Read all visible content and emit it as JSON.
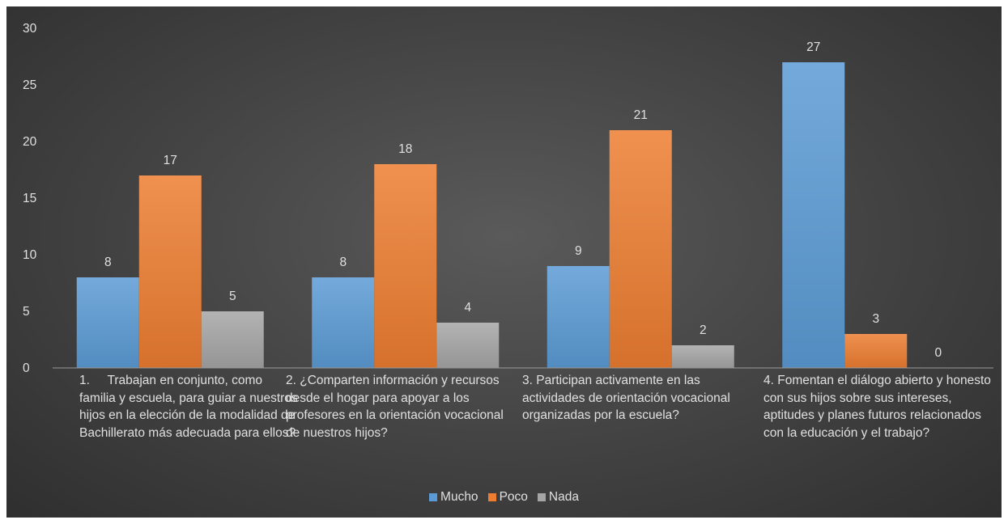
{
  "chart_data": {
    "type": "bar",
    "title": "",
    "xlabel": "",
    "ylabel": "",
    "ylim": [
      0,
      30
    ],
    "yticks": [
      0,
      5,
      10,
      15,
      20,
      25,
      30
    ],
    "grid": false,
    "legend_position": "bottom",
    "categories": [
      "1.\tTrabajan en conjunto, como familia y escuela, para guiar a nuestros hijos en la elección de la modalidad de Bachillerato más adecuada para ellos?",
      "2. ¿Comparten información y recursos desde el hogar para apoyar a los profesores en la orientación vocacional de nuestros hijos?",
      "3. Participan activamente en las actividades de orientación vocacional organizadas por la escuela?",
      "4. Fomentan el diálogo abierto y honesto con sus hijos sobre sus intereses, aptitudes y planes futuros relacionados con la educación y el trabajo?"
    ],
    "series": [
      {
        "name": "Mucho",
        "color": "#5b9bd5",
        "values": [
          8,
          8,
          9,
          27
        ]
      },
      {
        "name": "Poco",
        "color": "#ed7d31",
        "values": [
          17,
          18,
          21,
          3
        ]
      },
      {
        "name": "Nada",
        "color": "#a5a5a5",
        "values": [
          5,
          4,
          2,
          0
        ]
      }
    ]
  }
}
